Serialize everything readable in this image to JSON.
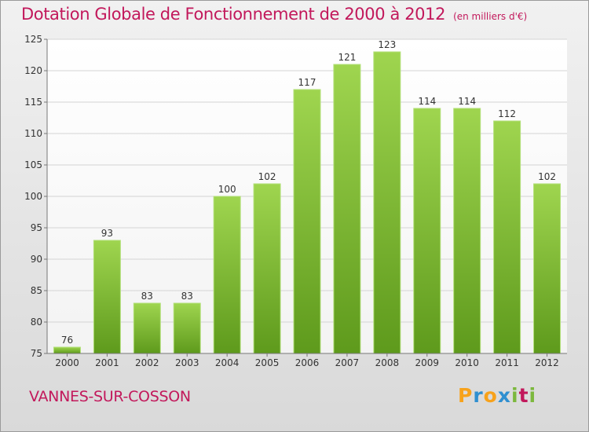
{
  "chart_data": {
    "type": "bar",
    "title": "Dotation Globale de Fonctionnement de 2000 à 2012",
    "subtitle": "(en milliers d'€)",
    "categories": [
      "2000",
      "2001",
      "2002",
      "2003",
      "2004",
      "2005",
      "2006",
      "2007",
      "2008",
      "2009",
      "2010",
      "2011",
      "2012"
    ],
    "values": [
      76,
      93,
      83,
      83,
      100,
      102,
      117,
      121,
      123,
      114,
      114,
      112,
      102
    ],
    "ylim": [
      75,
      125
    ],
    "yticks": [
      75,
      80,
      85,
      90,
      95,
      100,
      105,
      110,
      115,
      120,
      125
    ],
    "grid": true,
    "bar_color": "#8dc63f"
  },
  "commune": "VANNES-SUR-COSSON",
  "logo": {
    "letters": [
      "P",
      "r",
      "o",
      "x",
      "i",
      "t",
      "i"
    ],
    "colors": [
      "#f7a21b",
      "#2f8fd0",
      "#f7a21b",
      "#2f8fd0",
      "#7cb83d",
      "#c2185b",
      "#7cb83d"
    ]
  }
}
